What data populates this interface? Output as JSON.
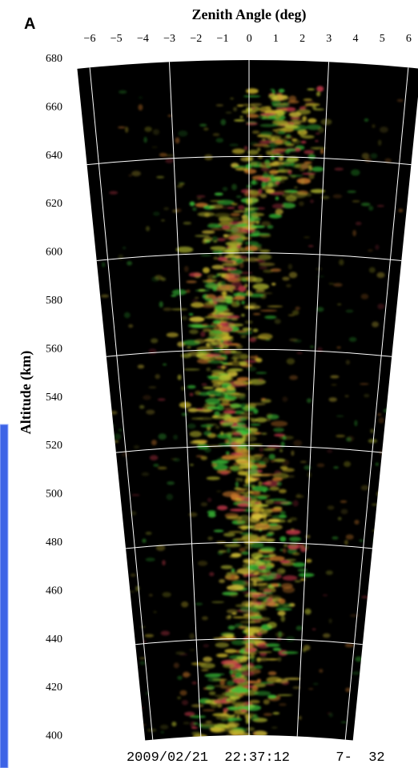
{
  "panel_label": "A",
  "x_axis": {
    "title": "Zenith Angle (deg)",
    "ticks": [
      "−6",
      "−5",
      "−4",
      "−3",
      "−2",
      "−1",
      "0",
      "1",
      "2",
      "3",
      "4",
      "5",
      "6"
    ]
  },
  "y_axis": {
    "title": "Altitude (km)",
    "ticks": [
      "680",
      "660",
      "640",
      "620",
      "600",
      "580",
      "560",
      "540",
      "520",
      "500",
      "480",
      "460",
      "440",
      "420",
      "400"
    ]
  },
  "footer": {
    "timestamp": "2009/02/21  22:37:12",
    "frame": "7-  32"
  }
}
